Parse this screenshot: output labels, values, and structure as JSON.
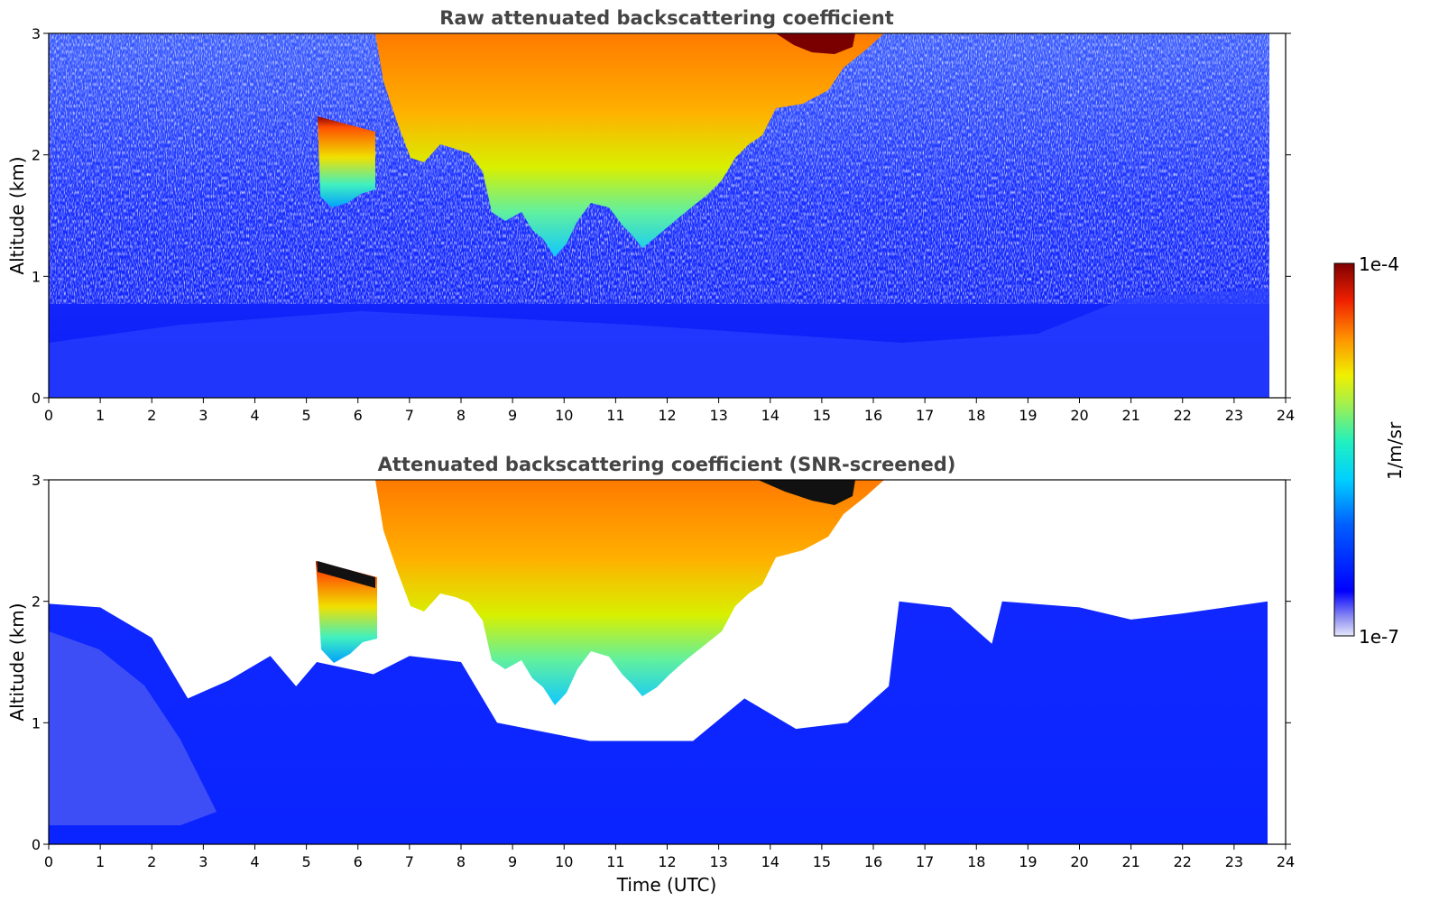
{
  "chart_data": [
    {
      "type": "heatmap",
      "title": "Raw attenuated backscattering coefficient",
      "xlabel": "",
      "ylabel": "Altitude (km)",
      "xlim": [
        0,
        24
      ],
      "ylim": [
        0,
        3
      ],
      "xticks": [
        "0",
        "1",
        "2",
        "3",
        "4",
        "5",
        "6",
        "7",
        "8",
        "9",
        "10",
        "11",
        "12",
        "13",
        "14",
        "15",
        "16",
        "17",
        "18",
        "19",
        "20",
        "21",
        "22",
        "23",
        "24"
      ],
      "yticks": [
        "0",
        "1",
        "2",
        "3"
      ],
      "data_end_time": 23.65,
      "screened": false,
      "features": [
        {
          "name": "aerosol layer",
          "time": [
            0,
            23.65
          ],
          "altitude_top": [
            0.55,
            0.9
          ],
          "level": "low"
        },
        {
          "name": "cloud",
          "time": [
            5.2,
            6.3
          ],
          "altitude": [
            1.6,
            2.3
          ],
          "top_level": "high"
        },
        {
          "name": "cloud",
          "time": [
            6.3,
            15.8
          ],
          "altitude": [
            1.2,
            3.0
          ],
          "level": "medium-high"
        },
        {
          "name": "cloud top",
          "time": [
            13.5,
            15.6
          ],
          "altitude": [
            2.7,
            3.0
          ],
          "level": "high"
        },
        {
          "name": "layer",
          "time": [
            19.0,
            23.65
          ],
          "altitude": [
            0.3,
            0.95
          ],
          "level": "low-medium"
        }
      ]
    },
    {
      "type": "heatmap",
      "title": "Attenuated backscattering coefficient (SNR-screened)",
      "xlabel": "Time (UTC)",
      "ylabel": "Altitude (km)",
      "xlim": [
        0,
        24
      ],
      "ylim": [
        0,
        3
      ],
      "xticks": [
        "0",
        "1",
        "2",
        "3",
        "4",
        "5",
        "6",
        "7",
        "8",
        "9",
        "10",
        "11",
        "12",
        "13",
        "14",
        "15",
        "16",
        "17",
        "18",
        "19",
        "20",
        "21",
        "22",
        "23",
        "24"
      ],
      "yticks": [
        "0",
        "1",
        "2",
        "3"
      ],
      "data_end_time": 23.65,
      "screened": true,
      "signal_top_altitude": [
        {
          "time": 0,
          "km": 1.98
        },
        {
          "time": 1,
          "km": 1.95
        },
        {
          "time": 2,
          "km": 1.7
        },
        {
          "time": 2.7,
          "km": 1.2
        },
        {
          "time": 3.5,
          "km": 1.35
        },
        {
          "time": 4.3,
          "km": 1.55
        },
        {
          "time": 4.8,
          "km": 1.3
        },
        {
          "time": 5.2,
          "km": 1.5
        },
        {
          "time": 6.3,
          "km": 1.4
        },
        {
          "time": 7.0,
          "km": 1.55
        },
        {
          "time": 8.0,
          "km": 1.5
        },
        {
          "time": 8.7,
          "km": 1.0
        },
        {
          "time": 10.5,
          "km": 0.85
        },
        {
          "time": 12.5,
          "km": 0.85
        },
        {
          "time": 13.5,
          "km": 1.2
        },
        {
          "time": 14.5,
          "km": 0.95
        },
        {
          "time": 15.5,
          "km": 1.0
        },
        {
          "time": 16.3,
          "km": 1.3
        },
        {
          "time": 16.5,
          "km": 2.0
        },
        {
          "time": 17.5,
          "km": 1.95
        },
        {
          "time": 18.3,
          "km": 1.65
        },
        {
          "time": 18.5,
          "km": 2.0
        },
        {
          "time": 20.0,
          "km": 1.95
        },
        {
          "time": 21.0,
          "km": 1.85
        },
        {
          "time": 22.0,
          "km": 1.9
        },
        {
          "time": 23.65,
          "km": 2.0
        }
      ]
    }
  ],
  "colorbar": {
    "label": "1/m/sr",
    "max_label": "1e-4",
    "min_label": "1e-7",
    "scale": "log",
    "colormap": "jet",
    "colors": [
      "#e6e6fa",
      "#b4b4f5",
      "#6464f0",
      "#0000ff",
      "#0050ff",
      "#00a0ff",
      "#00e5e5",
      "#40f0a0",
      "#a0f060",
      "#f0f000",
      "#ffb000",
      "#ff6000",
      "#e00000",
      "#7f0000"
    ]
  }
}
